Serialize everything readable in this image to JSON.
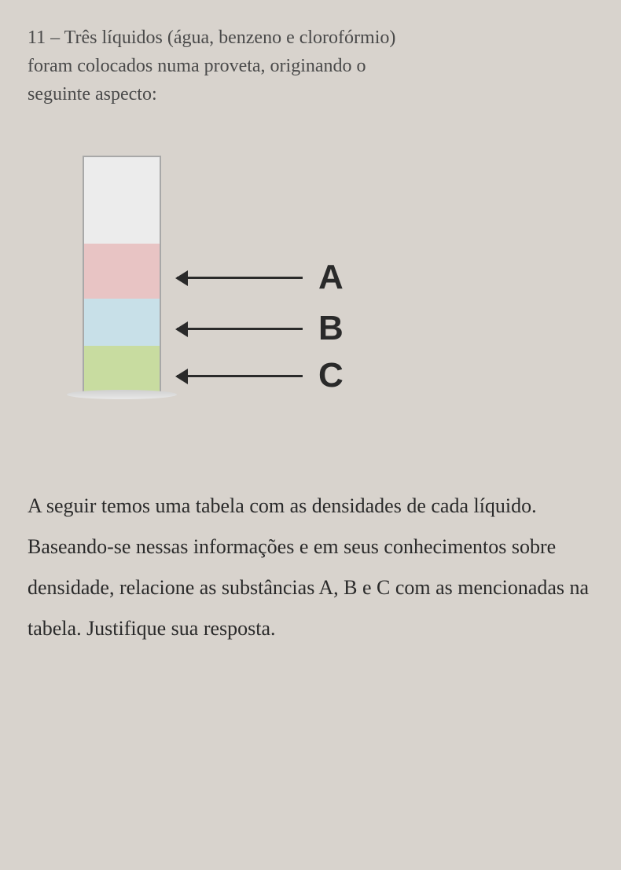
{
  "question": {
    "number": "11",
    "prompt_line1": "11 – Três líquidos (água, benzeno e clorofórmio)",
    "prompt_line2": "foram colocados numa proveta, originando o",
    "prompt_line3": "seguinte aspecto:"
  },
  "diagram": {
    "type": "infographic",
    "cylinder": {
      "border_color": "#a8a8a8",
      "empty_background": "#ececec",
      "layers": [
        {
          "id": "A",
          "color": "#e8c4c4",
          "position": "top"
        },
        {
          "id": "B",
          "color": "#c8e0e8",
          "position": "middle"
        },
        {
          "id": "C",
          "color": "#c8dca0",
          "position": "bottom"
        }
      ]
    },
    "labels": {
      "a": "A",
      "b": "B",
      "c": "C"
    },
    "arrow_color": "#2a2a2a",
    "label_fontsize": 44,
    "label_fontweight": "bold"
  },
  "body": {
    "text": "A seguir temos uma tabela com as densidades de cada líquido. Baseando-se nessas informações e em seus conhecimentos sobre densidade, relacione as substâncias A, B e C com as mencionadas na tabela. Justifique sua resposta."
  },
  "colors": {
    "page_background": "#d8d3cd",
    "text_color": "#3a3a3a",
    "body_text_color": "#2a2a2a"
  }
}
